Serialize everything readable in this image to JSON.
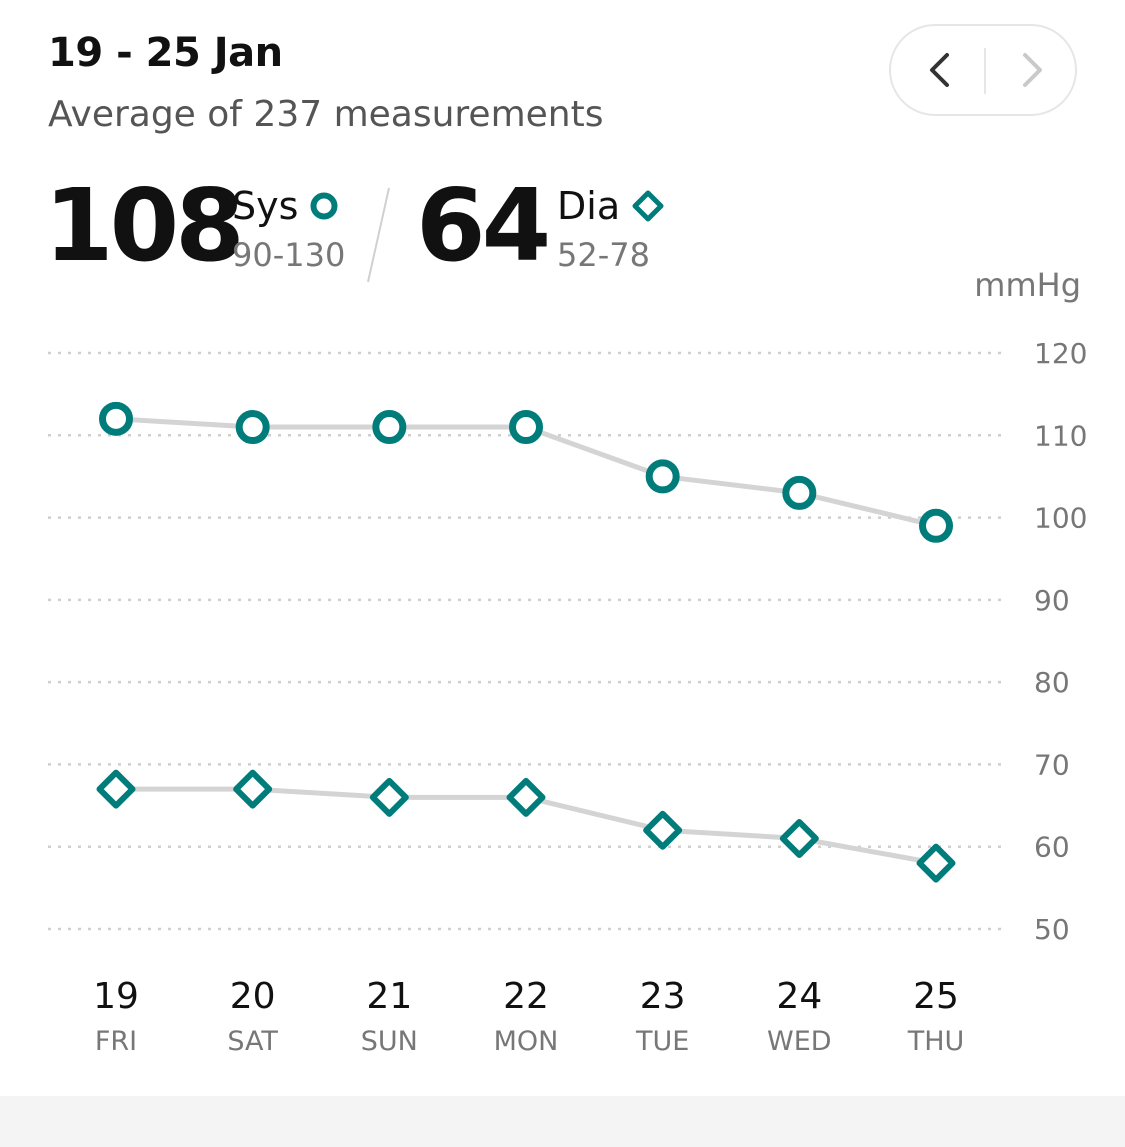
{
  "header": {
    "date_range": "19 - 25 Jan",
    "subtitle": "Average of 237 measurements"
  },
  "summary": {
    "systolic": {
      "value": "108",
      "label": "Sys",
      "range": "90-130"
    },
    "diastolic": {
      "value": "64",
      "label": "Dia",
      "range": "52-78"
    }
  },
  "colors": {
    "accent": "#007d7b",
    "line": "#d4d4d4",
    "grid": "#cfcfcf",
    "axis_text": "#777777"
  },
  "chart_data": {
    "type": "line",
    "unit": "mmHg",
    "x": [
      "19",
      "20",
      "21",
      "22",
      "23",
      "24",
      "25"
    ],
    "weekdays": [
      "FRI",
      "SAT",
      "SUN",
      "MON",
      "TUE",
      "WED",
      "THU"
    ],
    "series": [
      {
        "name": "Sys",
        "marker": "circle",
        "values": [
          112,
          111,
          111,
          111,
          105,
          103,
          99
        ]
      },
      {
        "name": "Dia",
        "marker": "diamond",
        "values": [
          67,
          67,
          66,
          66,
          62,
          61,
          58
        ]
      }
    ],
    "yticks": [
      120,
      110,
      100,
      90,
      80,
      70,
      60,
      50
    ],
    "ylim": [
      50,
      120
    ],
    "grid": true,
    "grid_style": "dotted",
    "yaxis_position": "right"
  }
}
